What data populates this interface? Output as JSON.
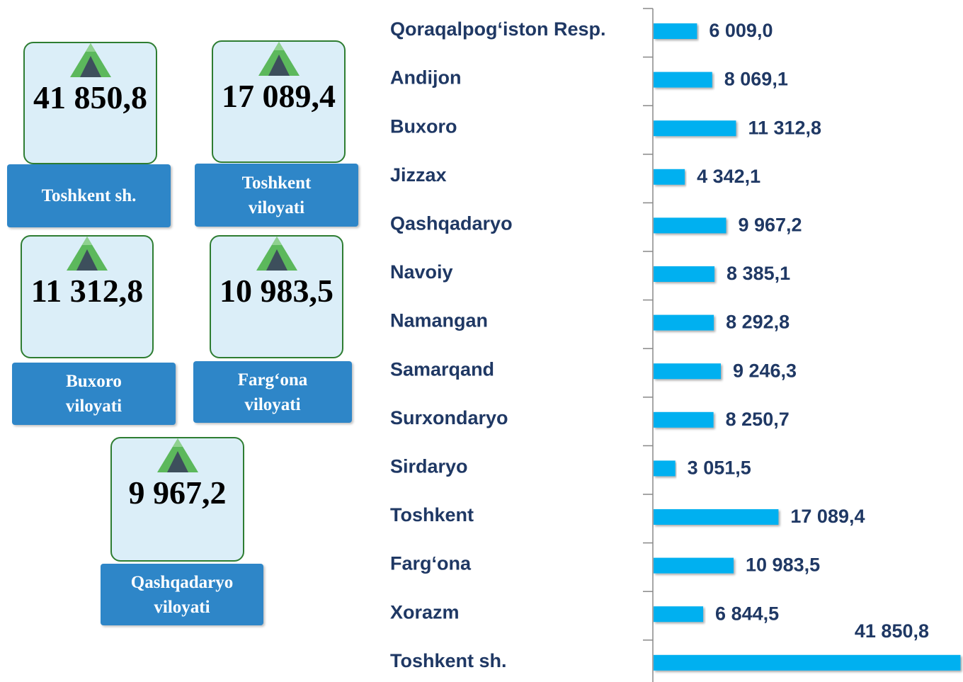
{
  "cards": [
    {
      "value": "41 850,8",
      "label": "Toshkent sh."
    },
    {
      "value": "17 089,4",
      "label": "Toshkent viloyati"
    },
    {
      "value": "11 312,8",
      "label": "Buxoro viloyati"
    },
    {
      "value": "10 983,5",
      "label": "Farg‘ona viloyati"
    },
    {
      "value": "9 967,2",
      "label": "Qashqadaryo viloyati"
    }
  ],
  "chart_data": {
    "type": "bar",
    "orientation": "horizontal",
    "color": "#00b0f0",
    "categories": [
      "Qoraqalpog‘iston Resp.",
      "Andijon",
      "Buxoro",
      "Jizzax",
      "Qashqadaryo",
      "Navoiy",
      "Namangan",
      "Samarqand",
      "Surxondaryo",
      "Sirdaryo",
      "Toshkent",
      "Farg‘ona",
      "Xorazm",
      "Toshkent sh."
    ],
    "values": [
      6009.0,
      8069.1,
      11312.8,
      4342.1,
      9967.2,
      8385.1,
      8292.8,
      9246.3,
      8250.7,
      3051.5,
      17089.4,
      10983.5,
      6844.5,
      41850.8
    ],
    "value_labels": [
      "6 009,0",
      "8 069,1",
      "11 312,8",
      "4 342,1",
      "9 967,2",
      "8 385,1",
      "8 292,8",
      "9 246,3",
      "8 250,7",
      "3 051,5",
      "17 089,4",
      "10 983,5",
      "6 844,5",
      "41 850,8"
    ],
    "xlim": [
      0,
      42000
    ]
  }
}
